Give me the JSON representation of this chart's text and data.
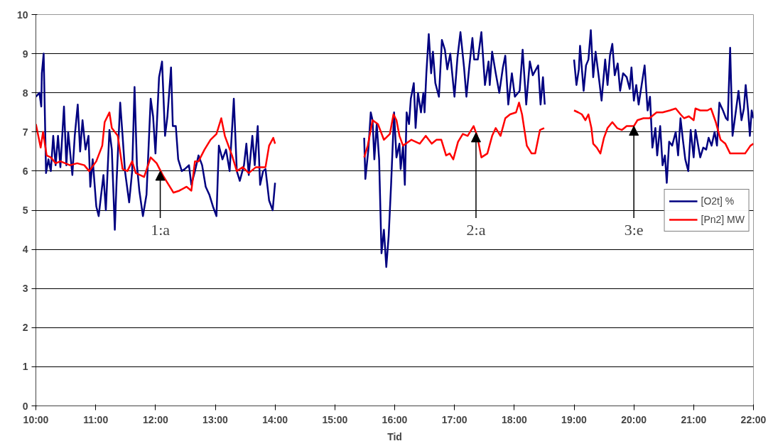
{
  "chart_data": {
    "type": "line",
    "xlabel": "Tid",
    "xlim": [
      10,
      22
    ],
    "xticks": [
      {
        "value": 10,
        "label": "10:00"
      },
      {
        "value": 11,
        "label": "11:00"
      },
      {
        "value": 12,
        "label": "12:00"
      },
      {
        "value": 13,
        "label": "13:00"
      },
      {
        "value": 14,
        "label": "14:00"
      },
      {
        "value": 15,
        "label": "15:00"
      },
      {
        "value": 16,
        "label": "16:00"
      },
      {
        "value": 17,
        "label": "17:00"
      },
      {
        "value": 18,
        "label": "18:00"
      },
      {
        "value": 19,
        "label": "19:00"
      },
      {
        "value": 20,
        "label": "20:00"
      },
      {
        "value": 21,
        "label": "21:00"
      },
      {
        "value": 22,
        "label": "22:00"
      }
    ],
    "ylim": [
      0,
      10
    ],
    "yticks": [
      0,
      1,
      2,
      3,
      4,
      5,
      6,
      7,
      8,
      9,
      10
    ],
    "grid": "y",
    "legend": "right",
    "marker": "none",
    "line_style": "solid",
    "series": [
      {
        "name": "[O2t] %",
        "color": "#000080",
        "x": [
          10.0,
          10.06,
          10.09,
          10.1,
          10.13,
          10.17,
          10.21,
          10.25,
          10.29,
          10.33,
          10.37,
          10.41,
          10.47,
          10.51,
          10.54,
          10.61,
          10.65,
          10.7,
          10.74,
          10.78,
          10.83,
          10.88,
          10.91,
          10.95,
          11.01,
          11.05,
          11.13,
          11.17,
          11.23,
          11.27,
          11.32,
          11.35,
          11.41,
          11.45,
          11.49,
          11.56,
          11.61,
          11.65,
          11.69,
          11.73,
          11.79,
          11.85,
          11.92,
          11.96,
          12.0,
          12.06,
          12.11,
          12.16,
          12.2,
          12.26,
          12.29,
          12.34,
          12.38,
          12.44,
          12.49,
          12.56,
          12.6,
          12.66,
          12.72,
          12.78,
          12.84,
          12.9,
          12.96,
          13.02,
          13.06,
          13.12,
          13.18,
          13.24,
          13.31,
          13.36,
          13.41,
          13.48,
          13.52,
          13.56,
          13.62,
          13.66,
          13.71,
          13.75,
          13.8,
          13.84,
          13.9,
          13.96,
          14.0,
          14.75,
          15.49,
          15.51,
          15.56,
          15.6,
          15.63,
          15.66,
          15.7,
          15.74,
          15.78,
          15.82,
          15.86,
          15.9,
          15.94,
          15.99,
          16.03,
          16.08,
          16.1,
          16.14,
          16.17,
          16.2,
          16.24,
          16.27,
          16.32,
          16.35,
          16.39,
          16.44,
          16.48,
          16.5,
          16.53,
          16.57,
          16.61,
          16.64,
          16.68,
          16.74,
          16.79,
          16.84,
          16.88,
          16.93,
          17.0,
          17.05,
          17.1,
          17.16,
          17.2,
          17.25,
          17.3,
          17.33,
          17.39,
          17.45,
          17.51,
          17.57,
          17.59,
          17.63,
          17.69,
          17.75,
          17.81,
          17.85,
          17.9,
          17.96,
          18.01,
          18.09,
          18.14,
          18.2,
          18.26,
          18.31,
          18.4,
          18.44,
          18.48,
          18.51,
          18.75,
          19.0,
          19.04,
          19.08,
          19.1,
          19.16,
          19.2,
          19.24,
          19.28,
          19.32,
          19.36,
          19.41,
          19.46,
          19.52,
          19.56,
          19.6,
          19.64,
          19.68,
          19.73,
          19.77,
          19.82,
          19.88,
          19.93,
          19.96,
          20.0,
          20.04,
          20.08,
          20.13,
          20.18,
          20.23,
          20.27,
          20.31,
          20.36,
          20.39,
          20.44,
          20.48,
          20.52,
          20.55,
          20.59,
          20.64,
          20.7,
          20.74,
          20.78,
          20.82,
          20.86,
          20.91,
          20.95,
          21.0,
          21.03,
          21.11,
          21.16,
          21.21,
          21.25,
          21.3,
          21.35,
          21.39,
          21.43,
          21.49,
          21.54,
          21.57,
          21.61,
          21.65,
          21.69,
          21.75,
          21.8,
          21.84,
          21.87,
          21.91,
          21.94,
          21.97,
          22.0
        ],
        "values": [
          7.9,
          8.0,
          7.65,
          8.5,
          9.0,
          5.95,
          6.3,
          6.0,
          6.9,
          6.15,
          6.9,
          6.1,
          7.65,
          6.15,
          7.0,
          5.9,
          6.9,
          7.7,
          6.5,
          7.3,
          6.55,
          6.9,
          5.6,
          6.3,
          5.1,
          4.85,
          5.9,
          5.0,
          7.05,
          6.55,
          4.5,
          5.75,
          7.75,
          6.9,
          6.0,
          5.2,
          6.0,
          8.15,
          6.15,
          5.5,
          4.85,
          5.4,
          7.85,
          7.4,
          6.45,
          8.4,
          8.8,
          6.9,
          7.4,
          8.65,
          7.15,
          7.15,
          6.3,
          6.0,
          6.05,
          6.15,
          5.65,
          6.0,
          6.4,
          6.15,
          5.6,
          5.4,
          5.1,
          4.85,
          6.65,
          6.3,
          6.55,
          6.0,
          7.85,
          6.0,
          5.75,
          6.15,
          6.7,
          5.9,
          6.9,
          6.15,
          7.15,
          5.65,
          6.0,
          6.05,
          5.25,
          5.0,
          5.7,
          null,
          6.85,
          5.8,
          6.55,
          7.5,
          7.3,
          6.3,
          7.2,
          6.3,
          3.9,
          4.5,
          3.55,
          4.35,
          5.65,
          7.5,
          6.35,
          6.7,
          6.05,
          6.65,
          5.65,
          7.5,
          7.2,
          7.85,
          8.25,
          7.1,
          8.0,
          7.5,
          8.0,
          7.5,
          8.5,
          9.5,
          8.5,
          9.05,
          8.25,
          7.9,
          9.35,
          9.1,
          8.6,
          9.0,
          7.9,
          8.9,
          9.55,
          8.65,
          7.9,
          8.7,
          9.4,
          8.85,
          8.85,
          9.55,
          8.2,
          8.8,
          8.2,
          9.05,
          8.5,
          8.0,
          8.65,
          8.95,
          7.7,
          8.5,
          7.9,
          8.05,
          9.1,
          7.7,
          8.8,
          8.45,
          8.7,
          7.7,
          8.4,
          7.7,
          null,
          8.85,
          8.2,
          8.6,
          9.2,
          8.05,
          8.7,
          8.85,
          9.6,
          8.4,
          9.05,
          8.45,
          7.8,
          8.85,
          8.2,
          8.95,
          9.25,
          8.45,
          8.75,
          8.05,
          8.5,
          8.4,
          8.1,
          8.65,
          7.8,
          8.2,
          7.7,
          8.2,
          8.7,
          7.55,
          7.9,
          6.6,
          7.1,
          6.4,
          7.15,
          6.15,
          6.4,
          5.7,
          6.75,
          6.65,
          7.0,
          6.4,
          7.35,
          6.8,
          6.3,
          6.0,
          7.05,
          6.35,
          7.05,
          6.35,
          6.6,
          6.55,
          6.85,
          6.65,
          7.0,
          6.65,
          7.75,
          7.55,
          7.35,
          7.3,
          9.15,
          6.9,
          7.35,
          8.05,
          7.3,
          7.6,
          8.2,
          7.55,
          6.9,
          7.55,
          7.35
        ]
      },
      {
        "name": "[Pn2] MW",
        "color": "#ff0000",
        "x": [
          10.0,
          10.08,
          10.12,
          10.18,
          10.25,
          10.33,
          10.41,
          10.57,
          10.69,
          10.81,
          10.89,
          11.01,
          11.11,
          11.15,
          11.23,
          11.27,
          11.37,
          11.45,
          11.53,
          11.61,
          11.67,
          11.81,
          11.92,
          12.02,
          12.12,
          12.22,
          12.3,
          12.4,
          12.52,
          12.6,
          12.66,
          12.72,
          12.82,
          12.92,
          13.02,
          13.1,
          13.16,
          13.28,
          13.36,
          13.46,
          13.56,
          13.68,
          13.84,
          13.9,
          13.97,
          14.0,
          14.75,
          15.49,
          15.55,
          15.63,
          15.72,
          15.82,
          15.92,
          15.98,
          16.03,
          16.08,
          16.14,
          16.28,
          16.42,
          16.52,
          16.62,
          16.7,
          16.78,
          16.86,
          16.92,
          16.98,
          17.06,
          17.14,
          17.22,
          17.32,
          17.38,
          17.45,
          17.55,
          17.63,
          17.69,
          17.77,
          17.85,
          17.93,
          18.03,
          18.08,
          18.13,
          18.21,
          18.29,
          18.35,
          18.43,
          18.5,
          18.75,
          19.0,
          19.07,
          19.13,
          19.19,
          19.24,
          19.29,
          19.32,
          19.38,
          19.44,
          19.5,
          19.56,
          19.64,
          19.72,
          19.8,
          19.88,
          20.0,
          20.06,
          20.16,
          20.26,
          20.38,
          20.48,
          20.6,
          20.7,
          20.78,
          20.84,
          20.92,
          21.0,
          21.03,
          21.11,
          21.23,
          21.29,
          21.37,
          21.45,
          21.53,
          21.61,
          21.73,
          21.86,
          21.95,
          22.0
        ],
        "values": [
          7.2,
          6.6,
          7.0,
          6.4,
          6.35,
          6.2,
          6.25,
          6.15,
          6.2,
          6.15,
          6.0,
          6.25,
          6.65,
          7.25,
          7.5,
          7.1,
          6.9,
          6.05,
          6.0,
          6.25,
          5.95,
          5.85,
          6.35,
          6.2,
          5.9,
          5.65,
          5.45,
          5.5,
          5.6,
          5.5,
          6.25,
          6.25,
          6.55,
          6.8,
          6.95,
          7.35,
          6.9,
          6.4,
          6.0,
          6.1,
          5.95,
          6.1,
          6.1,
          6.65,
          6.85,
          6.7,
          null,
          6.35,
          6.65,
          7.3,
          7.2,
          6.8,
          6.95,
          7.45,
          7.3,
          6.9,
          6.65,
          6.8,
          6.7,
          6.9,
          6.7,
          6.8,
          6.8,
          6.4,
          6.45,
          6.3,
          6.75,
          6.95,
          6.9,
          7.15,
          6.9,
          6.35,
          6.45,
          6.9,
          7.1,
          6.9,
          7.35,
          7.45,
          7.5,
          7.75,
          7.45,
          6.65,
          6.45,
          6.45,
          7.05,
          7.1,
          null,
          7.55,
          7.5,
          7.45,
          7.3,
          7.45,
          7.1,
          6.7,
          6.6,
          6.45,
          6.85,
          7.1,
          7.25,
          7.1,
          7.05,
          7.15,
          7.15,
          7.3,
          7.35,
          7.35,
          7.5,
          7.5,
          7.55,
          7.6,
          7.45,
          7.35,
          7.4,
          7.3,
          7.6,
          7.55,
          7.55,
          7.6,
          7.25,
          6.8,
          6.7,
          6.45,
          6.45,
          6.45,
          6.65,
          6.7
        ]
      }
    ],
    "annotations": [
      {
        "text": "1:a",
        "x": 12.08,
        "y": 6.0
      },
      {
        "text": "2:a",
        "x": 17.36,
        "y": 6.98
      },
      {
        "text": "3:e",
        "x": 20.0,
        "y": 7.15
      }
    ]
  }
}
